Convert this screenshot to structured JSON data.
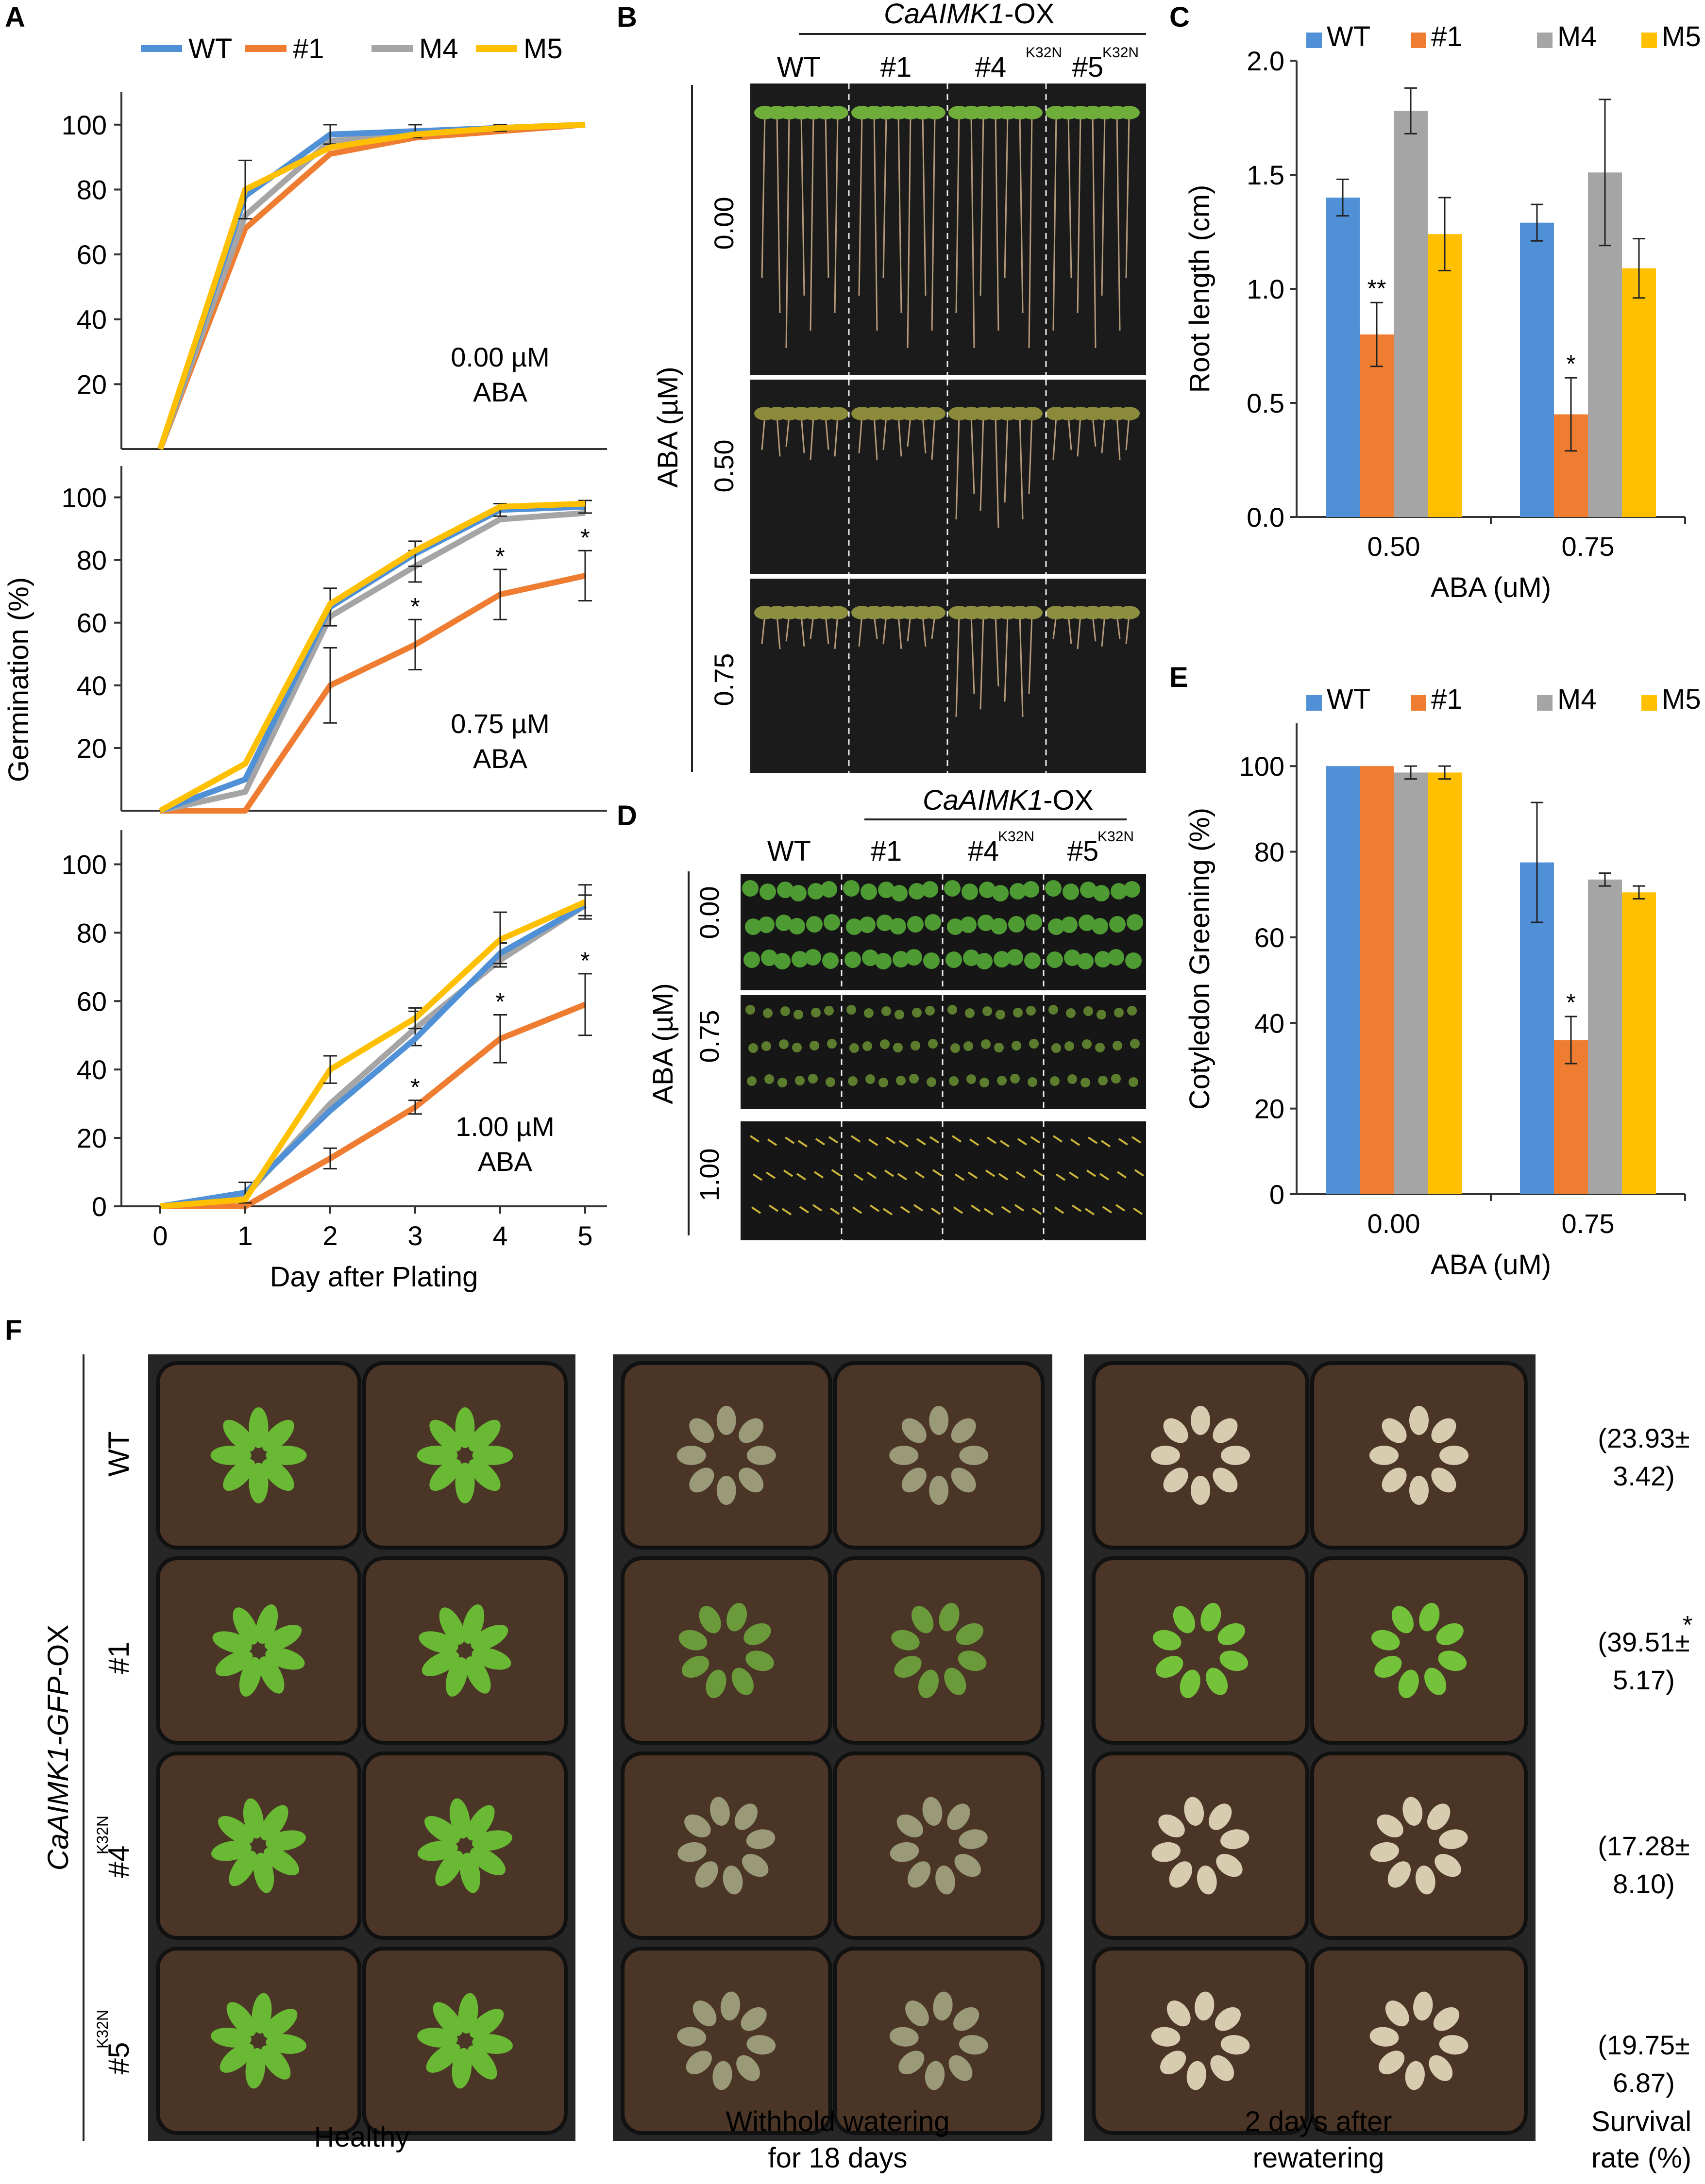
{
  "colors": {
    "WT": "#4f90d6",
    "#1": "#ee7d31",
    "M4": "#a5a5a5",
    "M5": "#fec000"
  },
  "legend": [
    "WT",
    "#1",
    "M4",
    "M5"
  ],
  "panels": {
    "A": {
      "letter": "A",
      "ylabel": "Germination (%)",
      "xlabel": "Day after Plating",
      "xticks": [
        "0",
        "1",
        "2",
        "3",
        "4",
        "5"
      ],
      "yticks_top": [
        "20",
        "40",
        "60",
        "80",
        "100"
      ],
      "yticks_mid": [
        "20",
        "40",
        "60",
        "80",
        "100"
      ],
      "yticks_bot": [
        "0",
        "20",
        "40",
        "60",
        "80",
        "100"
      ],
      "sub_labels": [
        {
          "line1": "0.00 µM",
          "line2": "ABA"
        },
        {
          "line1": "0.75 µM",
          "line2": "ABA"
        },
        {
          "line1": "1.00 µM",
          "line2": "ABA"
        }
      ],
      "star": "*"
    },
    "B": {
      "letter": "B",
      "construct": "CaAIMK1",
      "construct_suffix": "-OX",
      "cols": [
        "WT",
        "#1",
        "#4",
        "#5"
      ],
      "mutation": "K32N",
      "ylabel": "ABA (µM)",
      "rows": [
        "0.00",
        "0.50",
        "0.75"
      ]
    },
    "C": {
      "letter": "C"
    },
    "D": {
      "letter": "D",
      "construct": "CaAIMK1",
      "construct_suffix": "-OX",
      "cols": [
        "WT",
        "#1",
        "#4",
        "#5"
      ],
      "mutation": "K32N",
      "ylabel": "ABA (µM)",
      "rows": [
        "0.00",
        "0.75",
        "1.00"
      ]
    },
    "E": {
      "letter": "E"
    },
    "F": {
      "letter": "F",
      "construct_it": "CaAIMK1-GFP",
      "construct_suffix": "-OX",
      "rows": [
        "WT",
        "#1",
        "#4",
        "#5"
      ],
      "mutation": "K32N",
      "survival": [
        {
          "line1": "(23.93±",
          "line2": "3.42)",
          "star": ""
        },
        {
          "line1": "(39.51±",
          "line2": "5.17)",
          "star": "*"
        },
        {
          "line1": "(17.28±",
          "line2": "8.10)",
          "star": ""
        },
        {
          "line1": "(19.75±",
          "line2": "6.87)",
          "star": ""
        }
      ],
      "captions": {
        "healthy": "Healthy",
        "withhold1": "Withhold watering",
        "withhold2": "for 18 days",
        "rewater1": "2 days after",
        "rewater2": "rewatering",
        "survival1": "Survival",
        "survival2": "rate (%)"
      }
    }
  },
  "chart_data": [
    {
      "id": "A-0.00",
      "type": "line",
      "title": "0.00 µM ABA",
      "xlabel": "Day after Plating",
      "ylabel": "Germination (%)",
      "ylim": [
        0,
        100
      ],
      "x": [
        0,
        1,
        2,
        3,
        4,
        5
      ],
      "series": [
        {
          "name": "WT",
          "values": [
            0,
            78,
            97,
            98,
            99,
            100
          ],
          "err": [
            0,
            0,
            3,
            2,
            1,
            0
          ]
        },
        {
          "name": "#1",
          "values": [
            0,
            68,
            91,
            96,
            98,
            100
          ],
          "err": [
            0,
            0,
            0,
            0,
            0,
            0
          ]
        },
        {
          "name": "M4",
          "values": [
            0,
            72,
            95,
            97,
            99,
            100
          ],
          "err": [
            0,
            0,
            0,
            0,
            0,
            0
          ]
        },
        {
          "name": "M5",
          "values": [
            0,
            80,
            93,
            97,
            99,
            100
          ],
          "err": [
            0,
            9,
            0,
            0,
            0,
            0
          ]
        }
      ]
    },
    {
      "id": "A-0.75",
      "type": "line",
      "title": "0.75 µM ABA",
      "ylim": [
        0,
        100
      ],
      "x": [
        0,
        1,
        2,
        3,
        4,
        5
      ],
      "series": [
        {
          "name": "WT",
          "values": [
            0,
            10,
            65,
            82,
            96,
            97
          ],
          "err": [
            0,
            0,
            6,
            4,
            2,
            2
          ]
        },
        {
          "name": "#1",
          "values": [
            0,
            0,
            40,
            53,
            69,
            75
          ],
          "err": [
            0,
            0,
            12,
            8,
            8,
            8
          ]
        },
        {
          "name": "M4",
          "values": [
            0,
            6,
            62,
            78,
            93,
            95
          ],
          "err": [
            0,
            0,
            0,
            5,
            0,
            0
          ]
        },
        {
          "name": "M5",
          "values": [
            0,
            15,
            66,
            83,
            97,
            98
          ],
          "err": [
            0,
            0,
            0,
            0,
            0,
            0
          ]
        }
      ],
      "significant": {
        "#1": [
          3,
          4,
          5
        ]
      }
    },
    {
      "id": "A-1.00",
      "type": "line",
      "title": "1.00 µM ABA",
      "ylim": [
        0,
        100
      ],
      "x": [
        0,
        1,
        2,
        3,
        4,
        5
      ],
      "series": [
        {
          "name": "WT",
          "values": [
            0,
            4,
            28,
            49,
            74,
            88
          ],
          "err": [
            0,
            3,
            0,
            0,
            3,
            3
          ]
        },
        {
          "name": "#1",
          "values": [
            0,
            0,
            14,
            29,
            49,
            59
          ],
          "err": [
            0,
            0,
            3,
            2,
            7,
            9
          ]
        },
        {
          "name": "M4",
          "values": [
            0,
            3,
            30,
            52,
            72,
            88
          ],
          "err": [
            0,
            0,
            0,
            5,
            0,
            0
          ]
        },
        {
          "name": "M5",
          "values": [
            0,
            2,
            40,
            55,
            78,
            89
          ],
          "err": [
            0,
            0,
            4,
            3,
            8,
            5
          ]
        }
      ],
      "significant": {
        "#1": [
          3,
          4,
          5
        ]
      }
    },
    {
      "id": "C",
      "type": "bar",
      "xlabel": "ABA (uM)",
      "ylabel": "Root length (cm)",
      "ylim": [
        0,
        2.0
      ],
      "yticks": [
        "0.0",
        "0.5",
        "1.0",
        "1.5",
        "2.0"
      ],
      "categories": [
        "0.50",
        "0.75"
      ],
      "series": [
        {
          "name": "WT",
          "values": [
            1.4,
            1.29
          ],
          "err": [
            0.08,
            0.08
          ]
        },
        {
          "name": "#1",
          "values": [
            0.8,
            0.45
          ],
          "err": [
            0.14,
            0.16
          ]
        },
        {
          "name": "M4",
          "values": [
            1.78,
            1.51
          ],
          "err": [
            0.1,
            0.32
          ]
        },
        {
          "name": "M5",
          "values": [
            1.24,
            1.09
          ],
          "err": [
            0.16,
            0.13
          ]
        }
      ],
      "annotations": [
        {
          "series": "#1",
          "category": "0.50",
          "text": "**"
        },
        {
          "series": "#1",
          "category": "0.75",
          "text": "*"
        }
      ]
    },
    {
      "id": "E",
      "type": "bar",
      "xlabel": "ABA (uM)",
      "ylabel": "Cotyledon Greening (%)",
      "ylim": [
        0,
        110
      ],
      "yticks": [
        "0",
        "20",
        "40",
        "60",
        "80",
        "100"
      ],
      "categories": [
        "0.00",
        "0.75"
      ],
      "series": [
        {
          "name": "WT",
          "values": [
            100,
            77.5
          ],
          "err": [
            0,
            14
          ]
        },
        {
          "name": "#1",
          "values": [
            100,
            36
          ],
          "err": [
            0,
            5.5
          ]
        },
        {
          "name": "M4",
          "values": [
            98.5,
            73.5
          ],
          "err": [
            1.5,
            1.5
          ]
        },
        {
          "name": "M5",
          "values": [
            98.5,
            70.5
          ],
          "err": [
            1.5,
            1.5
          ]
        }
      ],
      "annotations": [
        {
          "series": "#1",
          "category": "0.75",
          "text": "*"
        }
      ]
    }
  ]
}
